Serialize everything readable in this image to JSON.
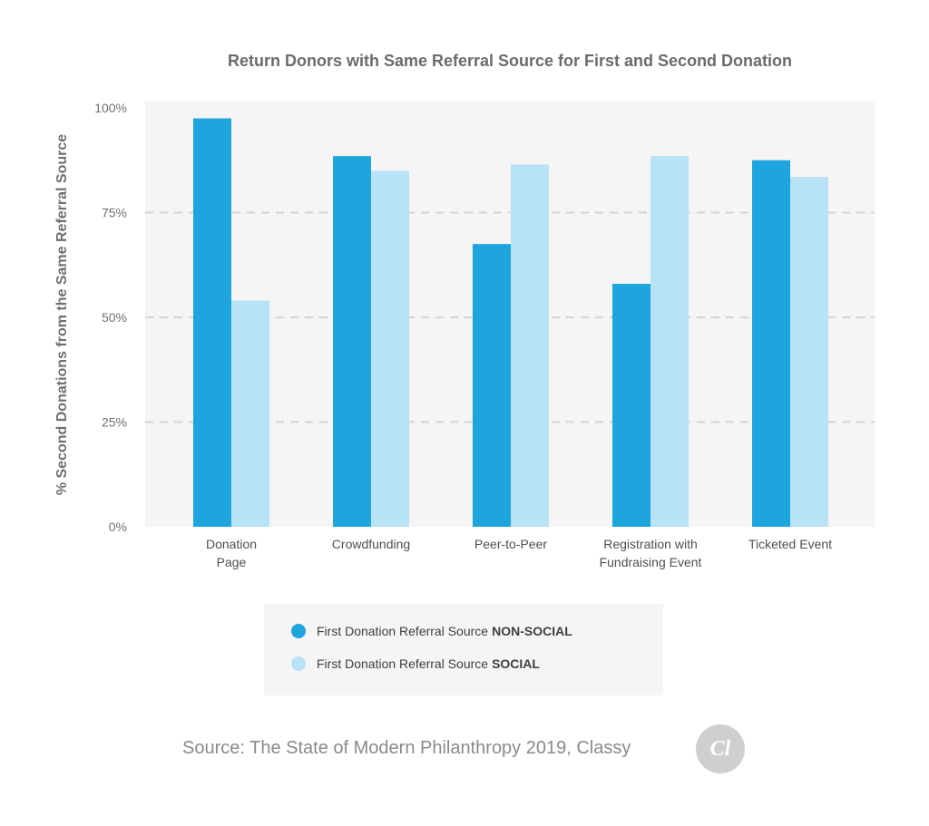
{
  "chart_data": {
    "type": "bar",
    "title": "Return Donors with Same Referral Source for First and Second Donation",
    "ylabel": "% Second Donations from the Same Referral Source",
    "xlabel": "",
    "ylim": [
      0,
      100
    ],
    "yticks": [
      "100%",
      "75%",
      "50%",
      "25%",
      "0%"
    ],
    "grid": "dashed horizontal at 25% intervals",
    "categories": [
      [
        "Donation",
        "Page"
      ],
      [
        "Crowdfunding"
      ],
      [
        "Peer-to-Peer"
      ],
      [
        "Registration with",
        "Fundraising Event"
      ],
      [
        "Ticketed Event"
      ]
    ],
    "series": [
      {
        "name": "First Donation Referral Source NON-SOCIAL",
        "color": "#1ea5de",
        "values": [
          97.5,
          88.5,
          67.5,
          58,
          87.5
        ]
      },
      {
        "name": "First Donation Referral Source SOCIAL",
        "color": "#b8e2f6",
        "values": [
          54,
          85,
          86.5,
          88.5,
          83.5
        ]
      }
    ],
    "legend_position": "bottom",
    "colors": {
      "plot_background": "#f5f5f5",
      "grid": "#d4d4d4"
    }
  },
  "legend": {
    "items": [
      {
        "prefix": "First Donation Referral Source",
        "strong": "NON-SOCIAL",
        "color": "#1ea5de"
      },
      {
        "prefix": "First Donation Referral Source",
        "strong": "SOCIAL",
        "color": "#b8e2f6"
      }
    ]
  },
  "footer": {
    "source": "Source: The State of Modern Philanthropy 2019, Classy",
    "logo_text": "Cl"
  }
}
